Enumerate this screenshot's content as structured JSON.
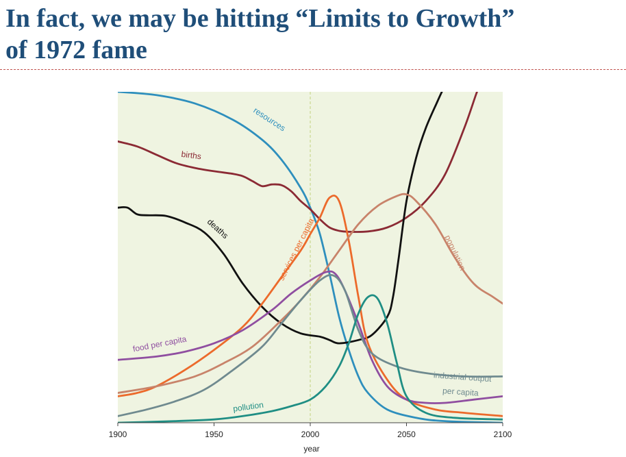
{
  "slide": {
    "title_line1": "In fact, we may be hitting “Limits to Growth”",
    "title_line2": "of 1972 fame"
  },
  "chart_data": {
    "type": "line",
    "xlabel": "year",
    "ylabel": "",
    "xlim": [
      1900,
      2100
    ],
    "ylim": [
      0,
      1
    ],
    "x_ticks": [
      "1900",
      "1950",
      "2000",
      "2050",
      "2100"
    ],
    "reference_line_x": 2000,
    "colors": {
      "plot_background": "#eff4e1",
      "reference_line": "#c8d88f"
    },
    "series": [
      {
        "name": "resources",
        "color": "#2e8fbd",
        "label_at": [
          1978,
          0.91
        ],
        "label_rotate": 33,
        "points": [
          [
            1900,
            1.0
          ],
          [
            1920,
            0.99
          ],
          [
            1940,
            0.965
          ],
          [
            1960,
            0.915
          ],
          [
            1975,
            0.855
          ],
          [
            1985,
            0.795
          ],
          [
            1995,
            0.71
          ],
          [
            2000,
            0.65
          ],
          [
            2005,
            0.57
          ],
          [
            2010,
            0.45
          ],
          [
            2015,
            0.32
          ],
          [
            2020,
            0.22
          ],
          [
            2025,
            0.14
          ],
          [
            2030,
            0.09
          ],
          [
            2040,
            0.04
          ],
          [
            2055,
            0.015
          ],
          [
            2070,
            0.005
          ],
          [
            2100,
            0.0
          ]
        ]
      },
      {
        "name": "births",
        "color": "#8b2a34",
        "label_at": [
          1938,
          0.8
        ],
        "label_rotate": 7,
        "points": [
          [
            1900,
            0.85
          ],
          [
            1910,
            0.835
          ],
          [
            1920,
            0.81
          ],
          [
            1930,
            0.785
          ],
          [
            1940,
            0.77
          ],
          [
            1950,
            0.76
          ],
          [
            1960,
            0.752
          ],
          [
            1965,
            0.745
          ],
          [
            1970,
            0.73
          ],
          [
            1975,
            0.715
          ],
          [
            1980,
            0.72
          ],
          [
            1985,
            0.718
          ],
          [
            1990,
            0.7
          ],
          [
            1995,
            0.67
          ],
          [
            2000,
            0.645
          ],
          [
            2005,
            0.615
          ],
          [
            2010,
            0.59
          ],
          [
            2015,
            0.58
          ],
          [
            2020,
            0.577
          ],
          [
            2030,
            0.578
          ],
          [
            2040,
            0.59
          ],
          [
            2050,
            0.62
          ],
          [
            2060,
            0.67
          ],
          [
            2070,
            0.75
          ],
          [
            2080,
            0.89
          ],
          [
            2086,
            0.99
          ],
          [
            2088,
            1.02
          ]
        ]
      },
      {
        "name": "deaths",
        "color": "#111111",
        "label_at": [
          1951,
          0.58
        ],
        "label_rotate": 42,
        "points": [
          [
            1900,
            0.65
          ],
          [
            1905,
            0.65
          ],
          [
            1910,
            0.63
          ],
          [
            1915,
            0.627
          ],
          [
            1925,
            0.625
          ],
          [
            1935,
            0.605
          ],
          [
            1945,
            0.575
          ],
          [
            1955,
            0.51
          ],
          [
            1965,
            0.42
          ],
          [
            1975,
            0.35
          ],
          [
            1985,
            0.3
          ],
          [
            1995,
            0.27
          ],
          [
            2005,
            0.26
          ],
          [
            2010,
            0.25
          ],
          [
            2015,
            0.24
          ],
          [
            2025,
            0.25
          ],
          [
            2032,
            0.265
          ],
          [
            2040,
            0.32
          ],
          [
            2043,
            0.38
          ],
          [
            2046,
            0.5
          ],
          [
            2050,
            0.67
          ],
          [
            2055,
            0.8
          ],
          [
            2060,
            0.89
          ],
          [
            2066,
            0.97
          ],
          [
            2070,
            1.02
          ]
        ]
      },
      {
        "name": "services per capita",
        "color": "#ec6a2b",
        "label_at": [
          1994,
          0.52
        ],
        "label_rotate": -63,
        "points": [
          [
            1900,
            0.08
          ],
          [
            1910,
            0.09
          ],
          [
            1920,
            0.11
          ],
          [
            1935,
            0.16
          ],
          [
            1950,
            0.22
          ],
          [
            1965,
            0.29
          ],
          [
            1975,
            0.36
          ],
          [
            1985,
            0.44
          ],
          [
            1995,
            0.52
          ],
          [
            2000,
            0.57
          ],
          [
            2005,
            0.62
          ],
          [
            2010,
            0.68
          ],
          [
            2015,
            0.67
          ],
          [
            2020,
            0.55
          ],
          [
            2025,
            0.38
          ],
          [
            2030,
            0.24
          ],
          [
            2040,
            0.13
          ],
          [
            2050,
            0.07
          ],
          [
            2065,
            0.04
          ],
          [
            2080,
            0.03
          ],
          [
            2100,
            0.02
          ]
        ]
      },
      {
        "name": "population",
        "color": "#c8836a",
        "label_at": [
          2074,
          0.51
        ],
        "label_rotate": 65,
        "points": [
          [
            1900,
            0.09
          ],
          [
            1920,
            0.11
          ],
          [
            1940,
            0.14
          ],
          [
            1955,
            0.18
          ],
          [
            1970,
            0.23
          ],
          [
            1985,
            0.31
          ],
          [
            1995,
            0.37
          ],
          [
            2005,
            0.44
          ],
          [
            2015,
            0.52
          ],
          [
            2025,
            0.6
          ],
          [
            2035,
            0.655
          ],
          [
            2045,
            0.685
          ],
          [
            2050,
            0.69
          ],
          [
            2055,
            0.67
          ],
          [
            2065,
            0.6
          ],
          [
            2075,
            0.5
          ],
          [
            2085,
            0.42
          ],
          [
            2095,
            0.38
          ],
          [
            2100,
            0.36
          ]
        ]
      },
      {
        "name": "food per capita",
        "color": "#8f4ea0",
        "label_at": [
          1922,
          0.23
        ],
        "label_rotate": -11,
        "points": [
          [
            1900,
            0.19
          ],
          [
            1920,
            0.2
          ],
          [
            1935,
            0.215
          ],
          [
            1950,
            0.24
          ],
          [
            1965,
            0.28
          ],
          [
            1980,
            0.34
          ],
          [
            1990,
            0.39
          ],
          [
            2000,
            0.43
          ],
          [
            2008,
            0.455
          ],
          [
            2013,
            0.45
          ],
          [
            2018,
            0.4
          ],
          [
            2025,
            0.3
          ],
          [
            2032,
            0.19
          ],
          [
            2040,
            0.11
          ],
          [
            2050,
            0.07
          ],
          [
            2060,
            0.06
          ],
          [
            2070,
            0.06
          ],
          [
            2085,
            0.07
          ],
          [
            2100,
            0.08
          ]
        ]
      },
      {
        "name": "industrial output",
        "color": "#6f8a8f",
        "label_at": [
          2079,
          0.13
        ],
        "label_rotate": 4,
        "points": [
          [
            1900,
            0.02
          ],
          [
            1915,
            0.04
          ],
          [
            1930,
            0.065
          ],
          [
            1945,
            0.1
          ],
          [
            1960,
            0.16
          ],
          [
            1975,
            0.23
          ],
          [
            1985,
            0.3
          ],
          [
            1995,
            0.37
          ],
          [
            2005,
            0.43
          ],
          [
            2012,
            0.445
          ],
          [
            2018,
            0.4
          ],
          [
            2025,
            0.28
          ],
          [
            2032,
            0.21
          ],
          [
            2045,
            0.17
          ],
          [
            2060,
            0.15
          ],
          [
            2080,
            0.14
          ],
          [
            2100,
            0.14
          ]
        ]
      },
      {
        "name": "pollution",
        "color": "#1f8e84",
        "label_at": [
          1968,
          0.04
        ],
        "label_rotate": -8,
        "points": [
          [
            1900,
            0.0
          ],
          [
            1930,
            0.005
          ],
          [
            1950,
            0.01
          ],
          [
            1965,
            0.02
          ],
          [
            1980,
            0.035
          ],
          [
            1990,
            0.05
          ],
          [
            2000,
            0.07
          ],
          [
            2008,
            0.11
          ],
          [
            2015,
            0.17
          ],
          [
            2020,
            0.24
          ],
          [
            2025,
            0.33
          ],
          [
            2030,
            0.38
          ],
          [
            2035,
            0.375
          ],
          [
            2040,
            0.3
          ],
          [
            2045,
            0.18
          ],
          [
            2050,
            0.08
          ],
          [
            2060,
            0.03
          ],
          [
            2075,
            0.015
          ],
          [
            2100,
            0.01
          ]
        ]
      }
    ],
    "extra_labels": [
      {
        "text": "per capita",
        "series": "industrial output",
        "at": [
          2078,
          0.085
        ],
        "rotate": 4
      }
    ]
  }
}
